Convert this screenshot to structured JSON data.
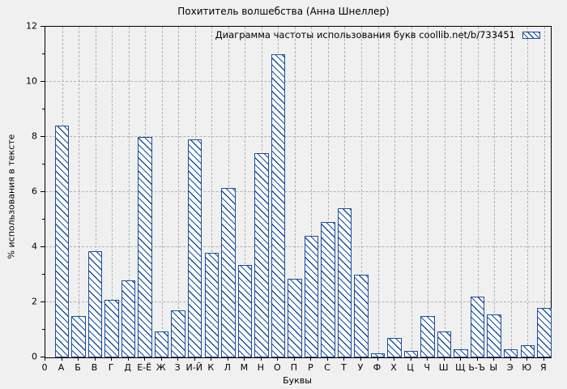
{
  "title": "Похититель волшебства (Анна Шнеллер)",
  "legend": {
    "label": "Диаграмма частоты использования букв coollib.net/b/733451",
    "swatch": "blue-diagonal-hatch"
  },
  "axes": {
    "x_title": "Буквы",
    "y_title": "% использования в тексте",
    "x_origin_label": "0",
    "y_tick_labels": [
      "0",
      "2",
      "4",
      "6",
      "8",
      "10",
      "12"
    ]
  },
  "colors": {
    "background": "#f0f0f0",
    "bar_border": "#1a4e9e",
    "bar_hatch": "#1a4e9e",
    "bar_fill": "#ffffff",
    "grid": "#b1b1b1",
    "plot_border": "#000000",
    "text": "#000000"
  },
  "chart_data": {
    "type": "bar",
    "title": "Похититель волшебства (Анна Шнеллер)",
    "xlabel": "Буквы",
    "ylabel": "% использования в тексте",
    "ylim": [
      0,
      12
    ],
    "y_major_ticks": [
      0,
      2,
      4,
      6,
      8,
      10,
      12
    ],
    "grid": true,
    "legend_position": "top-right",
    "legend_entries": [
      "Диаграмма частоты использования букв coollib.net/b/733451"
    ],
    "bar_style": "white fill with blue backslash hatch, dark blue border",
    "categories": [
      "А",
      "Б",
      "В",
      "Г",
      "Д",
      "Е-Ё",
      "Ж",
      "З",
      "И-Й",
      "К",
      "Л",
      "М",
      "Н",
      "О",
      "П",
      "Р",
      "С",
      "Т",
      "У",
      "Ф",
      "Х",
      "Ц",
      "Ч",
      "Ш",
      "Щ",
      "Ь-Ъ",
      "Ы",
      "Э",
      "Ю",
      "Я"
    ],
    "values": [
      8.4,
      1.5,
      3.85,
      2.1,
      2.8,
      8.0,
      0.95,
      1.7,
      7.9,
      3.8,
      6.15,
      3.35,
      7.4,
      11.0,
      2.85,
      4.4,
      4.9,
      5.4,
      3.0,
      0.15,
      0.7,
      0.25,
      1.5,
      0.95,
      0.3,
      2.2,
      1.55,
      0.3,
      0.45,
      1.8
    ]
  }
}
